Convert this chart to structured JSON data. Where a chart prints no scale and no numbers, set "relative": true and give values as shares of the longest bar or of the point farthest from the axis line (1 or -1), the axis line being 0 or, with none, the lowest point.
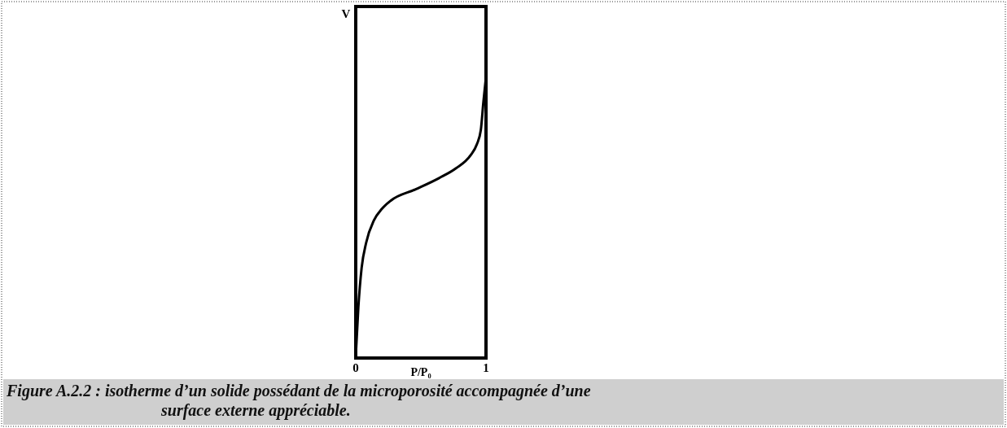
{
  "chart_data": {
    "type": "line",
    "relative": true,
    "xlabel": "P/P₀",
    "ylabel": "V",
    "xlim": [
      0,
      1
    ],
    "xticks": [
      0,
      1
    ],
    "marker": "none",
    "line_style": "solid",
    "series": [
      {
        "color": "#000000",
        "x": [
          0,
          0.02,
          0.045,
          0.08,
          0.14,
          0.2,
          0.27,
          0.46,
          0.64,
          0.77,
          0.88,
          0.93,
          0.96,
          0.98,
          1
        ],
        "values": [
          0.005,
          0.18,
          0.32,
          0.41,
          0.49,
          0.53,
          0.56,
          0.6,
          0.64,
          0.675,
          0.72,
          0.76,
          0.81,
          0.91,
          1
        ]
      }
    ],
    "annotations": [
      "Figure A.2.2 :  isotherme d’un solide possédant de la microporosité accompagnée d’une surface externe appréciable."
    ]
  }
}
